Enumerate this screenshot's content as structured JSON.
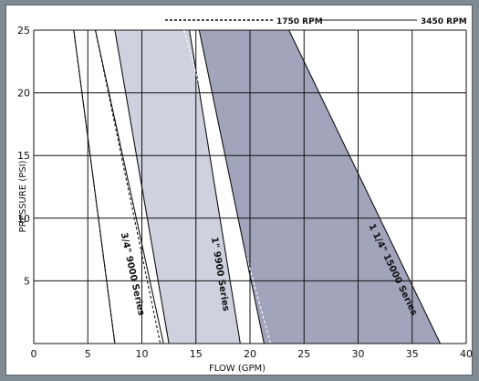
{
  "chart_data": {
    "type": "area",
    "xlabel": "FLOW (GPM)",
    "ylabel": "PRESSURE (PSI)",
    "xlim": [
      0,
      40
    ],
    "ylim": [
      0,
      25
    ],
    "x_ticks": [
      0,
      5,
      10,
      15,
      20,
      25,
      30,
      35,
      40
    ],
    "y_ticks": [
      5,
      10,
      15,
      20,
      25
    ],
    "grid": true,
    "legend": [
      {
        "label": "1750 RPM",
        "style": "dashed"
      },
      {
        "label": "3450 RPM",
        "style": "solid"
      }
    ],
    "series": [
      {
        "name": "3/4\" 9000 Series",
        "fill": "none",
        "boundaries": {
          "1750 RPM": {
            "left": [
              [
                3.7,
                25
              ],
              [
                7.5,
                0
              ]
            ],
            "right": [
              [
                5.7,
                25
              ],
              [
                11.7,
                0
              ]
            ]
          },
          "3450 RPM": {
            "left": [
              [
                3.7,
                25
              ],
              [
                7.5,
                0
              ]
            ],
            "right": [
              [
                5.7,
                25
              ],
              [
                12.0,
                0
              ]
            ]
          }
        }
      },
      {
        "name": "1\" 9900 Series",
        "fill": "#cfd1df",
        "boundaries": {
          "3450 RPM": {
            "left": [
              [
                7.5,
                25
              ],
              [
                12.5,
                0
              ]
            ],
            "right": [
              [
                14.4,
                25
              ],
              [
                19.1,
                0
              ]
            ]
          },
          "1750 RPM": {
            "right": [
              [
                13.9,
                25
              ],
              [
                21.9,
                0
              ]
            ]
          }
        }
      },
      {
        "name": "1 1/4\" 15000 Series",
        "fill": "#a2a4bc",
        "boundaries": {
          "3450 RPM": {
            "left": [
              [
                15.3,
                25
              ],
              [
                21.3,
                0
              ]
            ],
            "right": [
              [
                23.6,
                25
              ],
              [
                37.6,
                0
              ]
            ]
          }
        }
      }
    ],
    "band_labels": [
      {
        "text": "3/4\"  9000 Series",
        "x": 8.9,
        "y": 5.5
      },
      {
        "text": "1\"  9900 Series",
        "x": 17.0,
        "y": 5.5
      },
      {
        "text": "1 1/4\"  15000 Series",
        "x": 33.0,
        "y": 5.8
      }
    ],
    "colors": {
      "frame_bg": "#7f8a93",
      "plot_bg": "#ffffff",
      "grid": "#111111",
      "band1": "#cfd1df",
      "band2": "#a2a4bc"
    }
  }
}
